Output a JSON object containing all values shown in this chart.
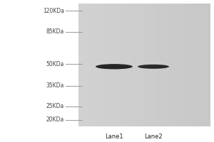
{
  "fig_width": 3.0,
  "fig_height": 2.0,
  "dpi": 100,
  "bg_color": "#ffffff",
  "marker_labels": [
    "120KDa",
    "85KDa",
    "50KDa",
    "35KDa",
    "25KDa",
    "20KDa"
  ],
  "marker_positions_kda": [
    120,
    85,
    50,
    35,
    25,
    20
  ],
  "marker_line_color": "#999999",
  "lane_labels": [
    "Lane1",
    "Lane2"
  ],
  "band_kda": 48,
  "band_color": "#1a1a1a",
  "label_fontsize": 6.0,
  "marker_fontsize": 5.5,
  "gel_gray": 0.8,
  "log_kda_min": 18,
  "log_kda_max": 135
}
